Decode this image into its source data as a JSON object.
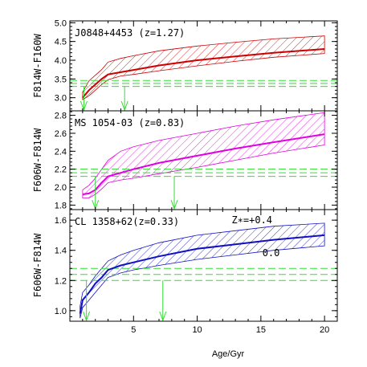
{
  "chart_data": {
    "type": "line",
    "xlabel": "Age/Gyr",
    "xlim": [
      0,
      21
    ],
    "xticks": [
      5,
      10,
      15,
      20
    ],
    "panels": [
      {
        "label": "J0848+4453 (z=1.27)",
        "ylabel": "F814W-F160W",
        "ylim": [
          2.65,
          5.05
        ],
        "yticks": [
          3.0,
          3.5,
          4.0,
          4.5,
          5.0
        ],
        "color": "#cc0000",
        "model": {
          "x": [
            1.0,
            1.5,
            2.0,
            2.5,
            3.0,
            4.0,
            5.0,
            7.0,
            10.0,
            13.0,
            16.0,
            20.0
          ],
          "y": [
            3.0,
            3.2,
            3.35,
            3.5,
            3.62,
            3.68,
            3.74,
            3.86,
            4.0,
            4.1,
            4.2,
            4.3
          ],
          "upper": [
            3.15,
            3.45,
            3.6,
            3.75,
            3.95,
            4.05,
            4.12,
            4.25,
            4.38,
            4.48,
            4.57,
            4.65
          ],
          "lower": [
            2.95,
            3.05,
            3.2,
            3.35,
            3.48,
            3.58,
            3.62,
            3.72,
            3.85,
            3.97,
            4.08,
            4.18
          ]
        },
        "obs_lines": [
          3.3,
          3.38,
          3.46
        ],
        "arrows": [
          1.1,
          4.3
        ]
      },
      {
        "label": "MS 1054-03 (z=0.83)",
        "ylabel": "F606W-F814W",
        "ylim": [
          1.75,
          2.85
        ],
        "yticks": [
          1.8,
          2.0,
          2.2,
          2.4,
          2.6,
          2.8
        ],
        "color": "#e000e0",
        "model": {
          "x": [
            1.0,
            1.5,
            2.0,
            2.5,
            3.0,
            4.0,
            5.0,
            7.0,
            10.0,
            13.0,
            16.0,
            20.0
          ],
          "y": [
            1.92,
            1.93,
            1.97,
            2.05,
            2.12,
            2.16,
            2.2,
            2.27,
            2.35,
            2.43,
            2.5,
            2.59
          ],
          "upper": [
            1.97,
            2.02,
            2.1,
            2.2,
            2.3,
            2.4,
            2.45,
            2.52,
            2.6,
            2.68,
            2.75,
            2.83
          ],
          "lower": [
            1.88,
            1.88,
            1.92,
            1.98,
            2.05,
            2.08,
            2.1,
            2.15,
            2.22,
            2.3,
            2.38,
            2.47
          ]
        },
        "obs_lines": [
          2.12,
          2.16,
          2.2
        ],
        "arrows": [
          2.0,
          8.2
        ]
      },
      {
        "label": "CL 1358+62(z=0.33)",
        "ylabel": "F606W-F814W",
        "ylim": [
          0.93,
          1.67
        ],
        "yticks": [
          1.0,
          1.2,
          1.4,
          1.6
        ],
        "color": "#1010c0",
        "model": {
          "x": [
            0.8,
            1.0,
            1.5,
            2.0,
            2.5,
            3.0,
            4.0,
            5.0,
            7.0,
            10.0,
            13.0,
            16.0,
            20.0
          ],
          "y": [
            0.98,
            1.07,
            1.12,
            1.18,
            1.22,
            1.27,
            1.3,
            1.32,
            1.36,
            1.41,
            1.44,
            1.47,
            1.5
          ],
          "upper": [
            1.03,
            1.12,
            1.17,
            1.23,
            1.28,
            1.33,
            1.37,
            1.4,
            1.45,
            1.5,
            1.53,
            1.56,
            1.58
          ],
          "lower": [
            0.95,
            1.02,
            1.07,
            1.12,
            1.17,
            1.22,
            1.25,
            1.27,
            1.3,
            1.34,
            1.37,
            1.4,
            1.43
          ]
        },
        "obs_lines": [
          1.2,
          1.24,
          1.28
        ],
        "arrows": [
          1.3,
          7.3
        ],
        "annotations": [
          {
            "text": "Z∗=+0.4",
            "x": 14.3,
            "y": 1.58
          },
          {
            "text": "0.0",
            "x": 15.8,
            "y": 1.36
          }
        ]
      }
    ],
    "grid": false,
    "legend": "none"
  }
}
